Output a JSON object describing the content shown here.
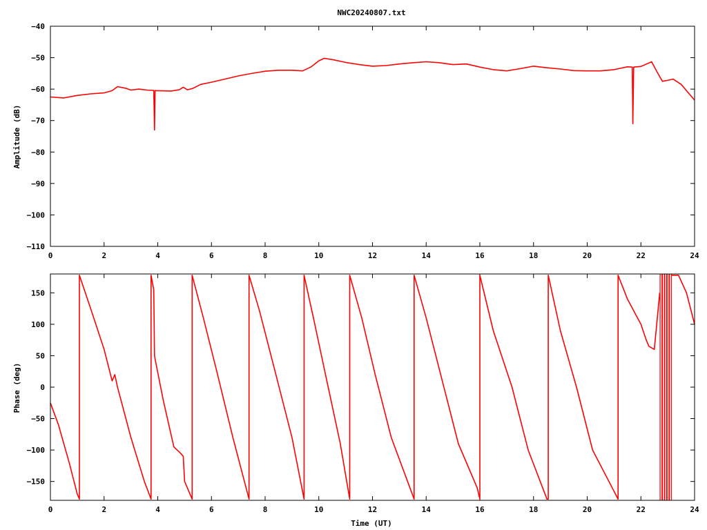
{
  "title": "NWC20240807.txt",
  "chart_data": [
    {
      "type": "line",
      "name": "amplitude-panel",
      "xlabel": "",
      "ylabel": "Amplitude (dB)",
      "xlim": [
        0,
        24
      ],
      "ylim": [
        -110,
        -40
      ],
      "xticks": [
        0,
        2,
        4,
        6,
        8,
        10,
        12,
        14,
        16,
        18,
        20,
        22,
        24
      ],
      "yticks": [
        -110,
        -100,
        -90,
        -80,
        -70,
        -60,
        -50,
        -40
      ],
      "grid": false,
      "color": "#ff0000",
      "series": [
        {
          "x": [
            0.0,
            0.5,
            1.0,
            1.5,
            2.0,
            2.3,
            2.5,
            2.8,
            3.0,
            3.3,
            3.6,
            3.85,
            3.88,
            3.9,
            3.93,
            4.0,
            4.5,
            4.8,
            4.95,
            5.1,
            5.3,
            5.6,
            6.0,
            6.5,
            7.0,
            7.5,
            8.0,
            8.5,
            9.0,
            9.4,
            9.7,
            10.0,
            10.2,
            10.5,
            11.0,
            11.5,
            12.0,
            12.5,
            13.0,
            13.5,
            14.0,
            14.5,
            15.0,
            15.5,
            16.0,
            16.5,
            17.0,
            17.5,
            18.0,
            18.5,
            19.0,
            19.5,
            20.0,
            20.5,
            21.0,
            21.5,
            21.68,
            21.7,
            21.73,
            22.0,
            22.4,
            22.6,
            22.8,
            23.0,
            23.2,
            23.5,
            24.0
          ],
          "y": [
            -62.5,
            -62.8,
            -62.0,
            -61.5,
            -61.2,
            -60.5,
            -59.2,
            -59.7,
            -60.3,
            -60.0,
            -60.3,
            -60.4,
            -73.0,
            -60.4,
            -60.5,
            -60.5,
            -60.6,
            -60.2,
            -59.4,
            -60.2,
            -59.8,
            -58.5,
            -57.8,
            -56.8,
            -55.8,
            -55.0,
            -54.3,
            -54.0,
            -54.0,
            -54.2,
            -53.0,
            -51.0,
            -50.2,
            -50.6,
            -51.5,
            -52.2,
            -52.7,
            -52.5,
            -52.0,
            -51.6,
            -51.3,
            -51.6,
            -52.2,
            -52.0,
            -53.0,
            -53.8,
            -54.2,
            -53.5,
            -52.7,
            -53.2,
            -53.6,
            -54.1,
            -54.2,
            -54.2,
            -53.8,
            -52.9,
            -53.0,
            -71.0,
            -53.0,
            -52.8,
            -51.3,
            -54.5,
            -57.5,
            -57.2,
            -56.8,
            -58.5,
            -63.5
          ]
        }
      ]
    },
    {
      "type": "line",
      "name": "phase-panel",
      "xlabel": "Time (UT)",
      "ylabel": "Phase (deg)",
      "xlim": [
        0,
        24
      ],
      "ylim": [
        -180,
        180
      ],
      "xticks": [
        0,
        2,
        4,
        6,
        8,
        10,
        12,
        14,
        16,
        18,
        20,
        22,
        24
      ],
      "yticks": [
        -150,
        -100,
        -50,
        0,
        50,
        100,
        150
      ],
      "grid": false,
      "color": "#ff0000",
      "series": [
        {
          "x": [
            0.0,
            0.3,
            0.7,
            1.0,
            1.08,
            1.08,
            1.5,
            2.0,
            2.3,
            2.4,
            2.5,
            3.0,
            3.5,
            3.75,
            3.75,
            3.85,
            3.88,
            3.9,
            4.2,
            4.6,
            4.85,
            4.95,
            5.0,
            5.28,
            5.28,
            5.7,
            6.2,
            6.8,
            7.4,
            7.4,
            7.8,
            8.4,
            9.0,
            9.45,
            9.45,
            9.8,
            10.3,
            10.8,
            11.15,
            11.15,
            11.6,
            12.1,
            12.7,
            13.55,
            13.55,
            14.0,
            14.6,
            15.2,
            15.9,
            16.0,
            16.0,
            16.5,
            17.2,
            17.8,
            18.5,
            18.55,
            18.55,
            19.0,
            19.6,
            20.2,
            21.15,
            21.15,
            21.5,
            22.0,
            22.2,
            22.3,
            22.5,
            22.7
          ],
          "y": [
            -25,
            -60,
            -120,
            -170,
            -178,
            178,
            125,
            60,
            10,
            20,
            0,
            -80,
            -150,
            -178,
            178,
            155,
            50,
            45,
            -20,
            -95,
            -105,
            -110,
            -150,
            -178,
            178,
            110,
            25,
            -80,
            -178,
            178,
            120,
            20,
            -80,
            -178,
            178,
            110,
            10,
            -90,
            -178,
            178,
            110,
            20,
            -80,
            -178,
            178,
            110,
            10,
            -90,
            -160,
            -178,
            178,
            90,
            0,
            -100,
            -178,
            -178,
            178,
            90,
            0,
            -100,
            -178,
            178,
            140,
            100,
            75,
            65,
            60,
            150
          ]
        },
        {
          "x": [
            23.15,
            23.4,
            23.7,
            24.0
          ],
          "y": [
            178,
            178,
            150,
            100
          ]
        }
      ],
      "annotations": [
        {
          "type": "dense-band",
          "x_range": [
            22.7,
            23.15
          ],
          "y_range": [
            -180,
            180
          ]
        }
      ]
    }
  ]
}
